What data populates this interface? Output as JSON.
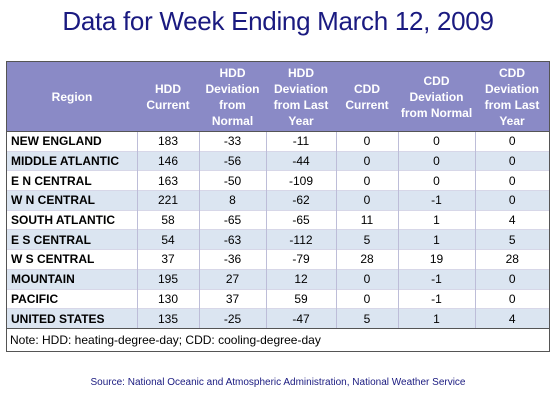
{
  "title": "Data for Week Ending March 12, 2009",
  "columns": [
    "Region",
    "HDD Current",
    "HDD Deviation from Normal",
    "HDD Deviation from Last Year",
    "CDD Current",
    "CDD Deviation from Normal",
    "CDD Deviation from Last Year"
  ],
  "rows": [
    [
      "NEW ENGLAND",
      "183",
      "-33",
      "-11",
      "0",
      "0",
      "0"
    ],
    [
      "MIDDLE ATLANTIC",
      "146",
      "-56",
      "-44",
      "0",
      "0",
      "0"
    ],
    [
      "E N CENTRAL",
      "163",
      "-50",
      "-109",
      "0",
      "0",
      "0"
    ],
    [
      "W N CENTRAL",
      "221",
      "8",
      "-62",
      "0",
      "-1",
      "0"
    ],
    [
      "SOUTH ATLANTIC",
      "58",
      "-65",
      "-65",
      "11",
      "1",
      "4"
    ],
    [
      "E S CENTRAL",
      "54",
      "-63",
      "-112",
      "5",
      "1",
      "5"
    ],
    [
      "W S CENTRAL",
      "37",
      "-36",
      "-79",
      "28",
      "19",
      "28"
    ],
    [
      "MOUNTAIN",
      "195",
      "27",
      "12",
      "0",
      "-1",
      "0"
    ],
    [
      "PACIFIC",
      "130",
      "37",
      "59",
      "0",
      "-1",
      "0"
    ],
    [
      "UNITED STATES",
      "135",
      "-25",
      "-47",
      "5",
      "1",
      "4"
    ]
  ],
  "note": "Note: HDD: heating-degree-day; CDD: cooling-degree-day",
  "source": "Source:  National Oceanic and Atmospheric Administration, National Weather Service"
}
